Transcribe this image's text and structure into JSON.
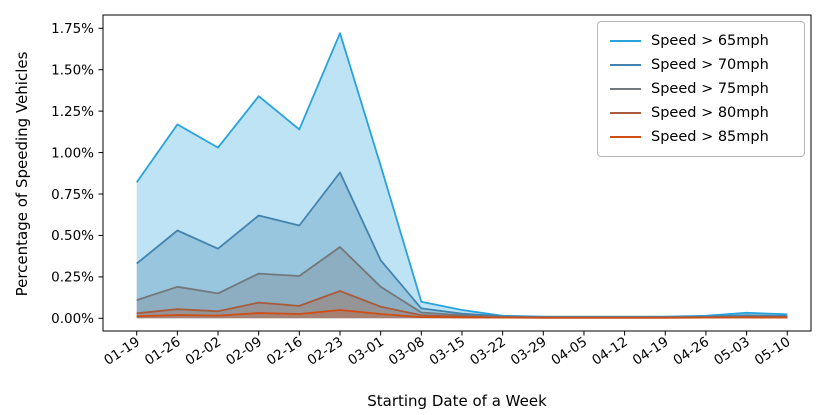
{
  "chart_data": {
    "type": "area",
    "title": "",
    "xlabel": "Starting Date of a Week",
    "ylabel": "Percentage of Speeding Vehicles",
    "categories": [
      "01-19",
      "01-26",
      "02-02",
      "02-09",
      "02-16",
      "02-23",
      "03-01",
      "03-08",
      "03-15",
      "03-22",
      "03-29",
      "04-05",
      "04-12",
      "04-19",
      "04-26",
      "05-03",
      "05-10"
    ],
    "y_tick_labels": [
      "0.00%",
      "0.25%",
      "0.50%",
      "0.75%",
      "1.00%",
      "1.25%",
      "1.50%",
      "1.75%"
    ],
    "y_tick_values": [
      0,
      0.25,
      0.5,
      0.75,
      1.0,
      1.25,
      1.5,
      1.75
    ],
    "ylim": [
      -0.075,
      1.83
    ],
    "grid": false,
    "legend_position": "upper right",
    "fill_opacity": 0.3,
    "series": [
      {
        "name": "Speed > 65mph",
        "color": "#29A3DC",
        "values": [
          0.82,
          1.17,
          1.03,
          1.34,
          1.14,
          1.72,
          0.92,
          0.1,
          0.05,
          0.015,
          0.01,
          0.01,
          0.01,
          0.01,
          0.015,
          0.033,
          0.024
        ]
      },
      {
        "name": "Speed > 70mph",
        "color": "#4383AE",
        "values": [
          0.33,
          0.53,
          0.42,
          0.62,
          0.56,
          0.88,
          0.35,
          0.06,
          0.028,
          0.012,
          0.008,
          0.008,
          0.008,
          0.008,
          0.01,
          0.018,
          0.014
        ]
      },
      {
        "name": "Speed > 75mph",
        "color": "#73787C",
        "values": [
          0.11,
          0.19,
          0.15,
          0.27,
          0.255,
          0.43,
          0.19,
          0.035,
          0.018,
          0.008,
          0.006,
          0.006,
          0.006,
          0.006,
          0.007,
          0.011,
          0.009
        ]
      },
      {
        "name": "Speed > 80mph",
        "color": "#A85C3D",
        "values": [
          0.03,
          0.055,
          0.042,
          0.095,
          0.075,
          0.165,
          0.07,
          0.018,
          0.01,
          0.005,
          0.004,
          0.004,
          0.004,
          0.004,
          0.005,
          0.007,
          0.006
        ]
      },
      {
        "name": "Speed > 85mph",
        "color": "#CD4F15",
        "values": [
          0.012,
          0.02,
          0.016,
          0.032,
          0.026,
          0.05,
          0.026,
          0.007,
          0.005,
          0.004,
          0.003,
          0.003,
          0.003,
          0.003,
          0.004,
          0.005,
          0.004
        ]
      }
    ]
  }
}
